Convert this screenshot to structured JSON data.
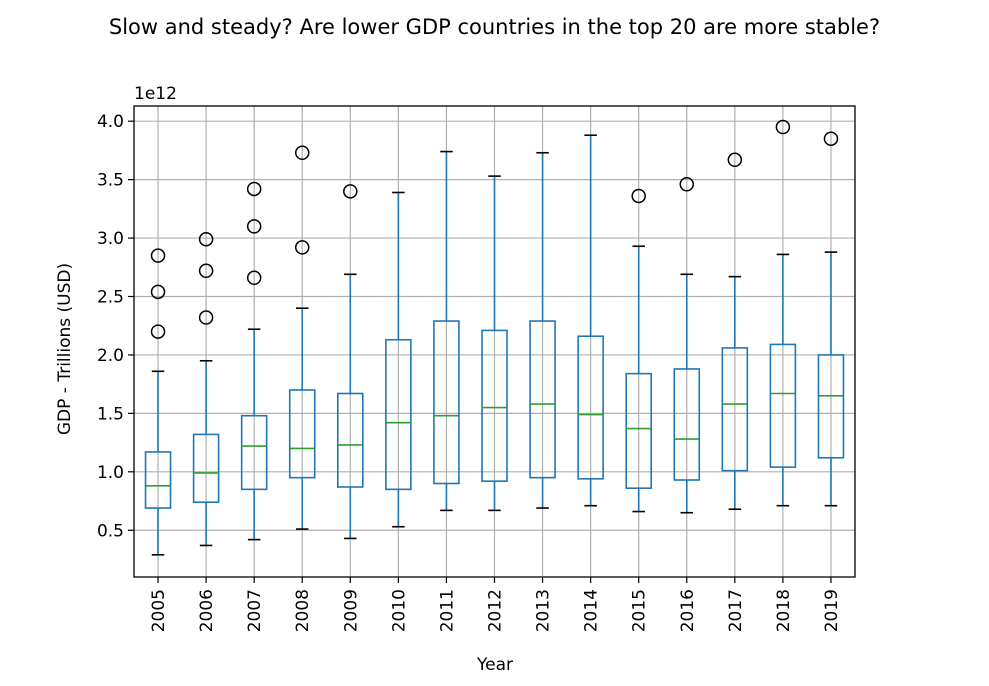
{
  "chart_data": {
    "type": "box",
    "title": "Slow and steady? Are lower GDP countries in the top 20 are more stable?",
    "xlabel": "Year",
    "ylabel": "GDP - Trillions (USD)",
    "y_offset_label": "1e12",
    "y_scale_factor": 1000000000000.0,
    "ylim": [
      0.1,
      4.13
    ],
    "yticks": [
      0.5,
      1.0,
      1.5,
      2.0,
      2.5,
      3.0,
      3.5,
      4.0
    ],
    "ytick_labels": [
      "0.5",
      "1.0",
      "1.5",
      "2.0",
      "2.5",
      "3.0",
      "3.5",
      "4.0"
    ],
    "grid": true,
    "categories": [
      "2005",
      "2006",
      "2007",
      "2008",
      "2009",
      "2010",
      "2011",
      "2012",
      "2013",
      "2014",
      "2015",
      "2016",
      "2017",
      "2018",
      "2019"
    ],
    "boxes": [
      {
        "category": "2005",
        "whisker_low": 0.29,
        "q1": 0.69,
        "median": 0.88,
        "q3": 1.17,
        "whisker_high": 1.86,
        "outliers": [
          2.2,
          2.54,
          2.85
        ]
      },
      {
        "category": "2006",
        "whisker_low": 0.37,
        "q1": 0.74,
        "median": 0.99,
        "q3": 1.32,
        "whisker_high": 1.95,
        "outliers": [
          2.32,
          2.72,
          2.99
        ]
      },
      {
        "category": "2007",
        "whisker_low": 0.42,
        "q1": 0.85,
        "median": 1.22,
        "q3": 1.48,
        "whisker_high": 2.22,
        "outliers": [
          2.66,
          3.1,
          3.42
        ]
      },
      {
        "category": "2008",
        "whisker_low": 0.51,
        "q1": 0.95,
        "median": 1.2,
        "q3": 1.7,
        "whisker_high": 2.4,
        "outliers": [
          2.92,
          3.73
        ]
      },
      {
        "category": "2009",
        "whisker_low": 0.43,
        "q1": 0.87,
        "median": 1.23,
        "q3": 1.67,
        "whisker_high": 2.69,
        "outliers": [
          3.4
        ]
      },
      {
        "category": "2010",
        "whisker_low": 0.53,
        "q1": 0.85,
        "median": 1.42,
        "q3": 2.13,
        "whisker_high": 3.39,
        "outliers": []
      },
      {
        "category": "2011",
        "whisker_low": 0.67,
        "q1": 0.9,
        "median": 1.48,
        "q3": 2.29,
        "whisker_high": 3.74,
        "outliers": []
      },
      {
        "category": "2012",
        "whisker_low": 0.67,
        "q1": 0.92,
        "median": 1.55,
        "q3": 2.21,
        "whisker_high": 3.53,
        "outliers": []
      },
      {
        "category": "2013",
        "whisker_low": 0.69,
        "q1": 0.95,
        "median": 1.58,
        "q3": 2.29,
        "whisker_high": 3.73,
        "outliers": []
      },
      {
        "category": "2014",
        "whisker_low": 0.71,
        "q1": 0.94,
        "median": 1.49,
        "q3": 2.16,
        "whisker_high": 3.88,
        "outliers": []
      },
      {
        "category": "2015",
        "whisker_low": 0.66,
        "q1": 0.86,
        "median": 1.37,
        "q3": 1.84,
        "whisker_high": 2.93,
        "outliers": [
          3.36
        ]
      },
      {
        "category": "2016",
        "whisker_low": 0.65,
        "q1": 0.93,
        "median": 1.28,
        "q3": 1.88,
        "whisker_high": 2.69,
        "outliers": [
          3.46
        ]
      },
      {
        "category": "2017",
        "whisker_low": 0.68,
        "q1": 1.01,
        "median": 1.58,
        "q3": 2.06,
        "whisker_high": 2.67,
        "outliers": [
          3.67
        ]
      },
      {
        "category": "2018",
        "whisker_low": 0.71,
        "q1": 1.04,
        "median": 1.67,
        "q3": 2.09,
        "whisker_high": 2.86,
        "outliers": [
          3.95
        ]
      },
      {
        "category": "2019",
        "whisker_low": 0.71,
        "q1": 1.12,
        "median": 1.65,
        "q3": 2.0,
        "whisker_high": 2.88,
        "outliers": [
          3.85
        ]
      }
    ],
    "colors": {
      "box": "#1f77b4",
      "median": "#2ca02c",
      "whisker_cap": "#000000",
      "outlier": "#000000",
      "grid": "#b0b0b0"
    }
  }
}
